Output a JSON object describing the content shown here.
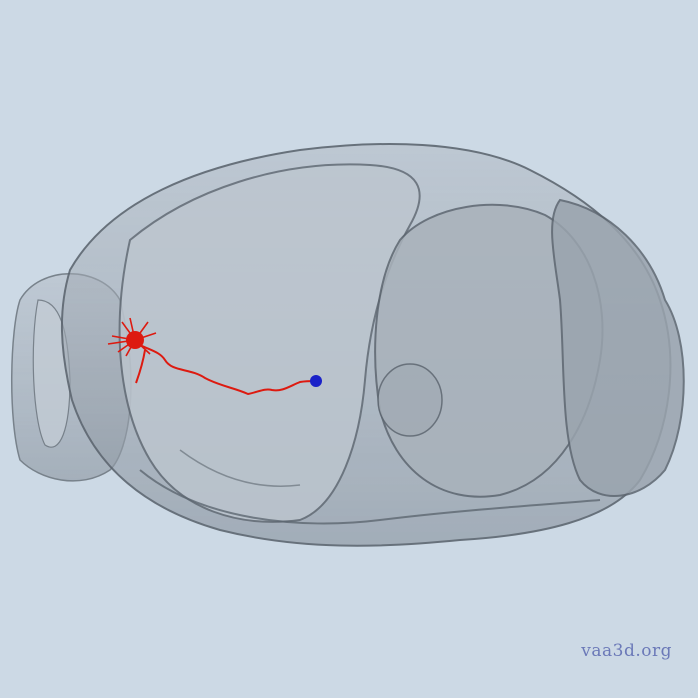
{
  "viewer": {
    "watermark": "vaa3d.org",
    "background_color": "#ccd9e5"
  },
  "scene": {
    "brain_mesh": {
      "description_icon": "brain-mesh-icon",
      "fill_color": "#98a1ab",
      "edge_color": "#5d6670"
    },
    "neuron": {
      "axon_color": "#dd1a10",
      "soma_color": "#1b22c8"
    }
  }
}
